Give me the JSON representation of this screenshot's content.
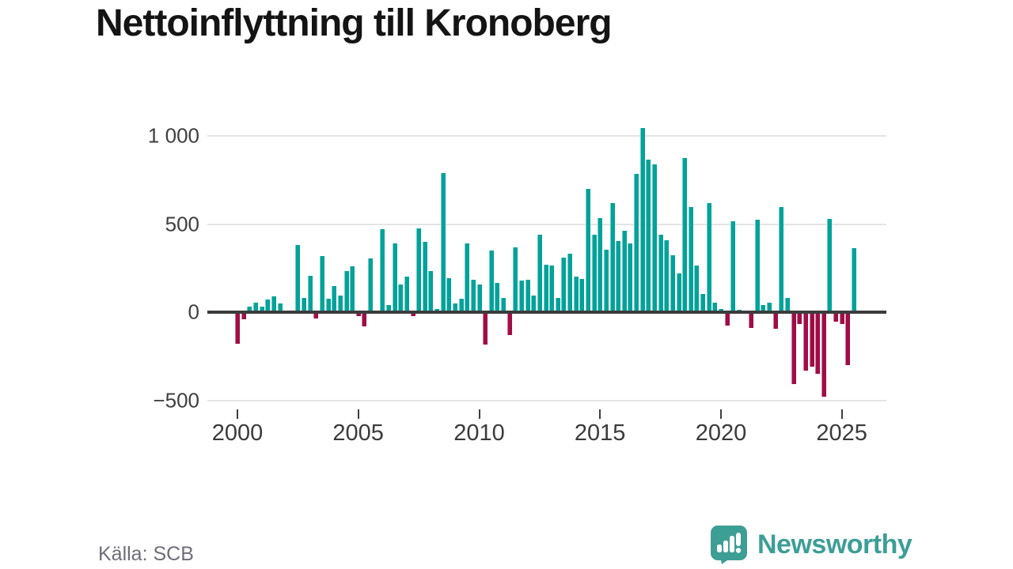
{
  "title": "Nettoinflyttning till Kronoberg",
  "source": "Källa: SCB",
  "branding": {
    "name": "Newsworthy",
    "color": "#3D9E96"
  },
  "chart_data": {
    "type": "bar",
    "title": "Nettoinflyttning till Kronoberg",
    "frequency": "quarterly",
    "x_start": "2000-Q1",
    "x_end": "2025-Q3",
    "grid": true,
    "ylim": [
      -500,
      1050
    ],
    "y_ticks": [
      1000,
      500,
      0,
      -500
    ],
    "y_tick_labels": [
      "1 000",
      "500",
      "0",
      "−500"
    ],
    "x_tick_years": [
      2000,
      2005,
      2010,
      2015,
      2020,
      2025
    ],
    "colors": {
      "positive": "#00A29A",
      "negative": "#A00D46"
    },
    "series": [
      {
        "year": 2000,
        "values": [
          -180,
          -40,
          30,
          55
        ]
      },
      {
        "year": 2001,
        "values": [
          30,
          70,
          90,
          50
        ]
      },
      {
        "year": 2002,
        "values": [
          10,
          0,
          380,
          80
        ]
      },
      {
        "year": 2003,
        "values": [
          205,
          -35,
          320,
          75
        ]
      },
      {
        "year": 2004,
        "values": [
          150,
          95,
          235,
          260
        ]
      },
      {
        "year": 2005,
        "values": [
          -20,
          -80,
          305,
          0
        ]
      },
      {
        "year": 2006,
        "values": [
          470,
          40,
          390,
          155
        ]
      },
      {
        "year": 2007,
        "values": [
          200,
          -20,
          475,
          400
        ]
      },
      {
        "year": 2008,
        "values": [
          235,
          20,
          790,
          195
        ]
      },
      {
        "year": 2009,
        "values": [
          50,
          75,
          390,
          185
        ]
      },
      {
        "year": 2010,
        "values": [
          155,
          -185,
          350,
          165
        ]
      },
      {
        "year": 2011,
        "values": [
          80,
          -130,
          370,
          180
        ]
      },
      {
        "year": 2012,
        "values": [
          185,
          95,
          440,
          270
        ]
      },
      {
        "year": 2013,
        "values": [
          265,
          80,
          310,
          330
        ]
      },
      {
        "year": 2014,
        "values": [
          200,
          190,
          700,
          440
        ]
      },
      {
        "year": 2015,
        "values": [
          535,
          355,
          620,
          405
        ]
      },
      {
        "year": 2016,
        "values": [
          460,
          390,
          785,
          1045
        ]
      },
      {
        "year": 2017,
        "values": [
          865,
          840,
          440,
          410
        ]
      },
      {
        "year": 2018,
        "values": [
          325,
          220,
          875,
          595
        ]
      },
      {
        "year": 2019,
        "values": [
          265,
          105,
          620,
          55
        ]
      },
      {
        "year": 2020,
        "values": [
          20,
          -75,
          515,
          15
        ]
      },
      {
        "year": 2021,
        "values": [
          0,
          -90,
          525,
          40
        ]
      },
      {
        "year": 2022,
        "values": [
          55,
          -95,
          595,
          80
        ]
      },
      {
        "year": 2023,
        "values": [
          -410,
          -65,
          -330,
          -310
        ]
      },
      {
        "year": 2024,
        "values": [
          -350,
          -480,
          530,
          -55
        ]
      },
      {
        "year": 2025,
        "values": [
          -65,
          -300,
          365
        ]
      }
    ]
  }
}
